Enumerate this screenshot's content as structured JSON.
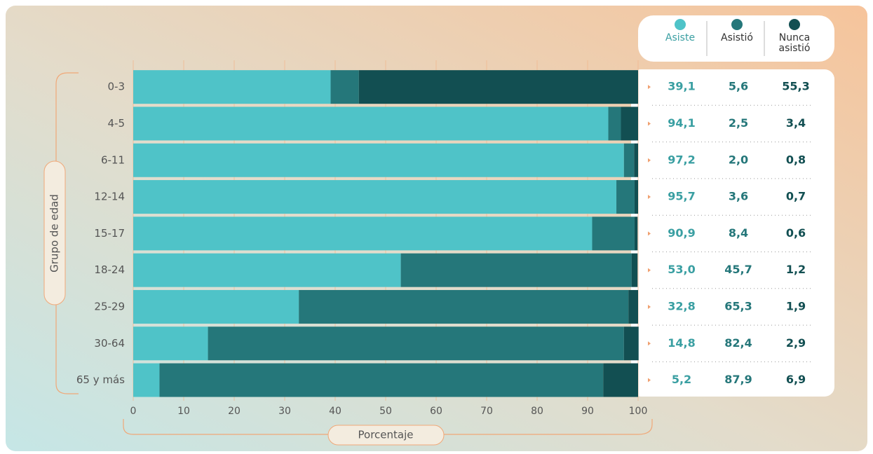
{
  "chart_data": {
    "type": "stacked-bar",
    "orientation": "horizontal",
    "categories": [
      "0-3",
      "4-5",
      "6-11",
      "12-14",
      "15-17",
      "18-24",
      "25-29",
      "30-64",
      "65 y más"
    ],
    "series": [
      {
        "name": "Asiste",
        "color": "#4fc3c8",
        "label_color": "#3a9fa2",
        "values": [
          39.1,
          94.1,
          97.2,
          95.7,
          90.9,
          53.0,
          32.8,
          14.8,
          5.2
        ],
        "value_labels": [
          "39,1",
          "94,1",
          "97,2",
          "95,7",
          "90,9",
          "53,0",
          "32,8",
          "14,8",
          "5,2"
        ]
      },
      {
        "name": "Asistió",
        "color": "#25777a",
        "label_color": "#25777a",
        "values": [
          5.6,
          2.5,
          2.0,
          3.6,
          8.4,
          45.7,
          65.3,
          82.4,
          87.9
        ],
        "value_labels": [
          "5,6",
          "2,5",
          "2,0",
          "3,6",
          "8,4",
          "45,7",
          "65,3",
          "82,4",
          "87,9"
        ]
      },
      {
        "name": "Nunca asistió",
        "color": "#124f52",
        "label_color": "#124f52",
        "values": [
          55.3,
          3.4,
          0.8,
          0.7,
          0.6,
          1.2,
          1.9,
          2.9,
          6.9
        ],
        "value_labels": [
          "55,3",
          "3,4",
          "0,8",
          "0,7",
          "0,6",
          "1,2",
          "1,9",
          "2,9",
          "6,9"
        ]
      }
    ],
    "xlabel": "Porcentaje",
    "ylabel": "Grupo de edad",
    "xlim": [
      0,
      100
    ],
    "xticks": [
      0,
      10,
      20,
      30,
      40,
      50,
      60,
      70,
      80,
      90,
      100
    ],
    "grid": true
  }
}
